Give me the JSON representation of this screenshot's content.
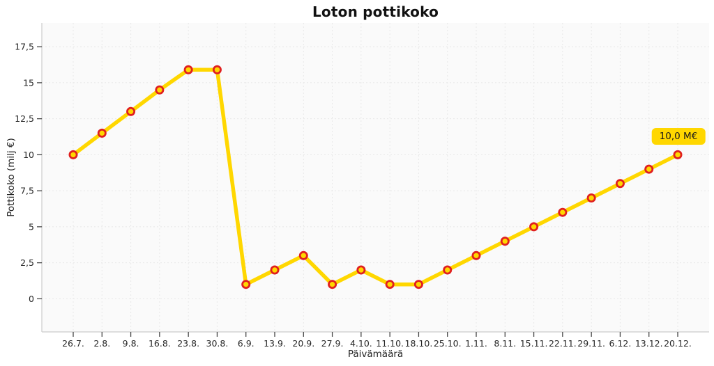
{
  "chart_data": {
    "type": "line",
    "title": "Loton pottikoko",
    "xlabel": "Päivämäärä",
    "ylabel": "Pottikoko (milj €)",
    "categories": [
      "26.7.",
      "2.8.",
      "9.8.",
      "16.8.",
      "23.8.",
      "30.8.",
      "6.9.",
      "13.9.",
      "20.9.",
      "27.9.",
      "4.10.",
      "11.10.",
      "18.10.",
      "25.10.",
      "1.11.",
      "8.11.",
      "15.11.",
      "22.11.",
      "29.11.",
      "6.12.",
      "13.12.",
      "20.12."
    ],
    "series": [
      {
        "name": "Pottikoko",
        "values": [
          10,
          11.5,
          13,
          14.5,
          15.9,
          15.9,
          1,
          2,
          3,
          1,
          2,
          1,
          1,
          2,
          3,
          4,
          5,
          6,
          7,
          8,
          9,
          10
        ]
      }
    ],
    "yticks": {
      "values": [
        0,
        2.5,
        5,
        7.5,
        10,
        12.5,
        15,
        17.5
      ],
      "labels": [
        "0",
        "2,5",
        "5",
        "7,5",
        "10",
        "12,5",
        "15",
        "17,5"
      ]
    },
    "ylim": [
      -2.3,
      19.15
    ],
    "grid": true,
    "legend_position": "none",
    "annotation": {
      "text": "10,0 M€",
      "category_index": 21,
      "value": 10
    },
    "colors": {
      "line": "#FFD700",
      "marker_fill": "#FFD700",
      "marker_edge": "#E01F1F",
      "annotation_bg": "#FFD700",
      "grid": "#e8e8e8",
      "spine": "#cccccc",
      "tick_mark": "#444444",
      "text": "#262626",
      "panel_bg": "#fafafa"
    }
  }
}
